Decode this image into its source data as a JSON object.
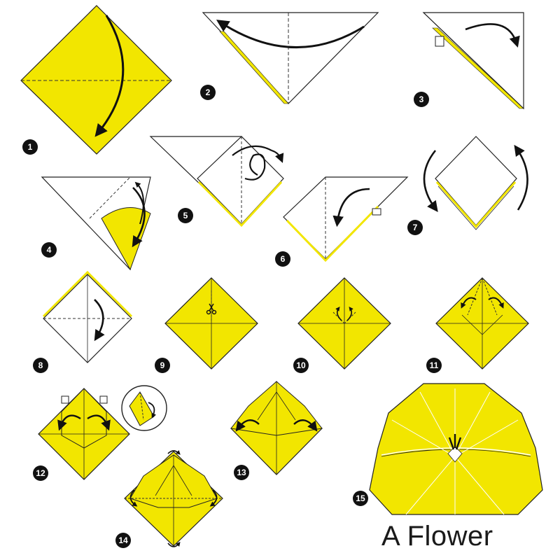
{
  "title": "A Flower",
  "colors": {
    "paper_front": "#F2E600",
    "paper_back": "#FFFFFF",
    "outline": "#1A1A1A",
    "badge": "#111111"
  },
  "steps": [
    {
      "number": "1"
    },
    {
      "number": "2"
    },
    {
      "number": "3"
    },
    {
      "number": "4"
    },
    {
      "number": "5"
    },
    {
      "number": "6"
    },
    {
      "number": "7"
    },
    {
      "number": "8"
    },
    {
      "number": "9"
    },
    {
      "number": "10"
    },
    {
      "number": "11"
    },
    {
      "number": "12"
    },
    {
      "number": "13"
    },
    {
      "number": "14"
    },
    {
      "number": "15"
    }
  ],
  "icons": {
    "fold_arrow": "curved-arrow-icon",
    "cut": "scissors-icon",
    "push": "push-arrow-icon",
    "zoom": "magnifier-inset-icon"
  }
}
